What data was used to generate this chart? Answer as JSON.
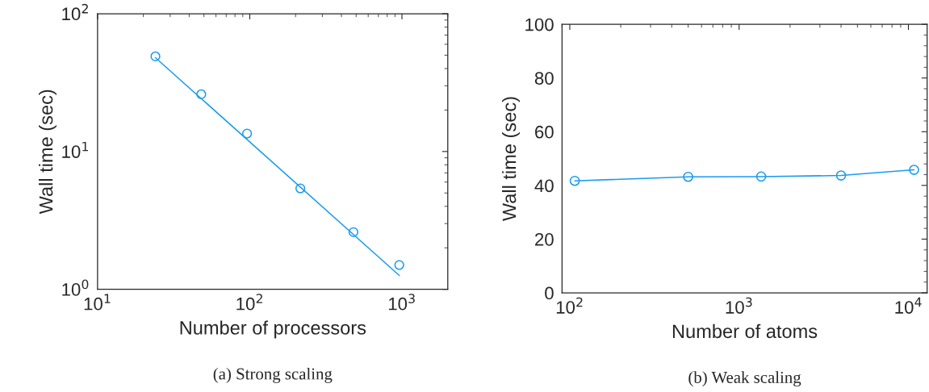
{
  "chart_data": [
    {
      "type": "scatter",
      "xlabel": "Number of processors",
      "ylabel": "Wall time (sec)",
      "log": "xy",
      "marker": "circle",
      "grid": false,
      "xlim": [
        10,
        2000
      ],
      "ylim": [
        1,
        100
      ],
      "xticks": [
        {
          "value": 10,
          "label": "10$^{1}$"
        },
        {
          "value": 100,
          "label": "10$^{2}$"
        },
        {
          "value": 1000,
          "label": "10$^{3}$"
        }
      ],
      "yticks": [
        {
          "value": 1,
          "label": "10$^{0}$"
        },
        {
          "value": 10,
          "label": "10$^{1}$"
        },
        {
          "value": 100,
          "label": "10$^{2}$"
        }
      ],
      "series": [
        {
          "color": "#1a9bf0",
          "x": [
            24,
            48,
            96,
            215,
            480,
            960
          ],
          "values": [
            49,
            26,
            13.5,
            5.4,
            2.6,
            1.5
          ]
        },
        {
          "type": "line",
          "marker": "none",
          "color": "#1a9bf0",
          "x": [
            24,
            960
          ],
          "values": [
            48,
            1.26
          ]
        }
      ],
      "annotations": [
        "(a) Strong scaling"
      ]
    },
    {
      "type": "line",
      "xlabel": "Number of atoms",
      "ylabel": "Wall time (sec)",
      "log": "x",
      "marker": "circle",
      "grid": false,
      "xlim": [
        90,
        12900
      ],
      "ylim": [
        0,
        100
      ],
      "xticks": [
        {
          "value": 100,
          "label": "10$^{2}$"
        },
        {
          "value": 1000,
          "label": "10$^{3}$"
        },
        {
          "value": 10000,
          "label": "10$^{4}$"
        }
      ],
      "yticks": [
        0,
        20,
        40,
        60,
        80,
        100
      ],
      "series": [
        {
          "color": "#1a9bf0",
          "x": [
            107,
            500,
            1350,
            4000,
            10800
          ],
          "values": [
            41.7,
            43.2,
            43.3,
            43.7,
            45.8
          ]
        }
      ],
      "annotations": [
        "(b) Weak scaling"
      ]
    }
  ]
}
